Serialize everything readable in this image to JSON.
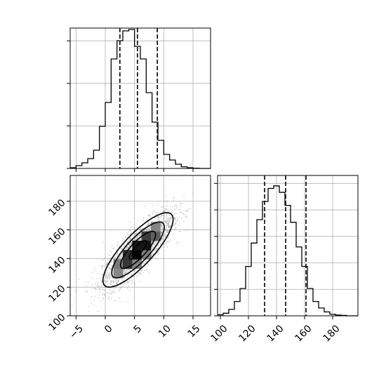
{
  "chart_data": [
    {
      "panel": "top-left",
      "type": "histogram",
      "xlim": [
        -6,
        18
      ],
      "ylim": [
        0,
        1.0
      ],
      "x_ticks": [
        -5,
        0,
        5,
        10,
        15
      ],
      "y_tick_labels_visible": false,
      "grid": true,
      "bin_edges": [
        -6,
        -5,
        -4,
        -3,
        -2,
        -1,
        0,
        1,
        2,
        3,
        4,
        5,
        6,
        7,
        8,
        9,
        10,
        11,
        12,
        13,
        14,
        15,
        16,
        17,
        18
      ],
      "counts": [
        0.005,
        0.02,
        0.04,
        0.07,
        0.13,
        0.3,
        0.47,
        0.78,
        0.91,
        0.98,
        0.99,
        0.87,
        0.78,
        0.54,
        0.33,
        0.2,
        0.1,
        0.06,
        0.03,
        0.012,
        0.005,
        0.002,
        0,
        0
      ],
      "quantile_lines": [
        2.5,
        5.5,
        8.9
      ],
      "line_color": "#000000"
    },
    {
      "panel": "bottom-right",
      "type": "histogram",
      "xlim": [
        98,
        198
      ],
      "ylim": [
        0,
        1.08
      ],
      "x_ticks": [
        100,
        120,
        140,
        160,
        180
      ],
      "x_tick_labels": [
        "100",
        "120",
        "140",
        "160",
        "180"
      ],
      "y_tick_labels_visible": false,
      "grid": true,
      "bin_edges": [
        98,
        102,
        106,
        110,
        114,
        118,
        122,
        126,
        130,
        134,
        138,
        142,
        146,
        150,
        154,
        158,
        162,
        166,
        170,
        174,
        178,
        182,
        186,
        190,
        194,
        198
      ],
      "counts": [
        0.008,
        0.02,
        0.05,
        0.11,
        0.21,
        0.38,
        0.56,
        0.74,
        0.88,
        0.98,
        1.0,
        0.95,
        0.85,
        0.72,
        0.53,
        0.38,
        0.21,
        0.11,
        0.06,
        0.03,
        0.012,
        0.006,
        0.003,
        0,
        0
      ],
      "quantile_lines": [
        131.5,
        146.5,
        161
      ],
      "line_color": "#000000"
    },
    {
      "panel": "bottom-left",
      "type": "scatter-contour",
      "xlim": [
        -6,
        18
      ],
      "ylim": [
        100,
        198
      ],
      "x_ticks": [
        -5,
        0,
        5,
        10,
        15
      ],
      "x_tick_labels": [
        "−5",
        "0",
        "5",
        "10",
        "15"
      ],
      "y_ticks": [
        100,
        120,
        140,
        160,
        180
      ],
      "y_tick_labels": [
        "100",
        "120",
        "140",
        "160",
        "180"
      ],
      "grid": true,
      "center": [
        5.6,
        146
      ],
      "std": [
        3.0,
        13
      ],
      "correlation": 0.82,
      "contour_sigmas": [
        0.5,
        1.0,
        1.5,
        2.0
      ],
      "point_color": "#888888",
      "contour_color": "#000000"
    }
  ]
}
